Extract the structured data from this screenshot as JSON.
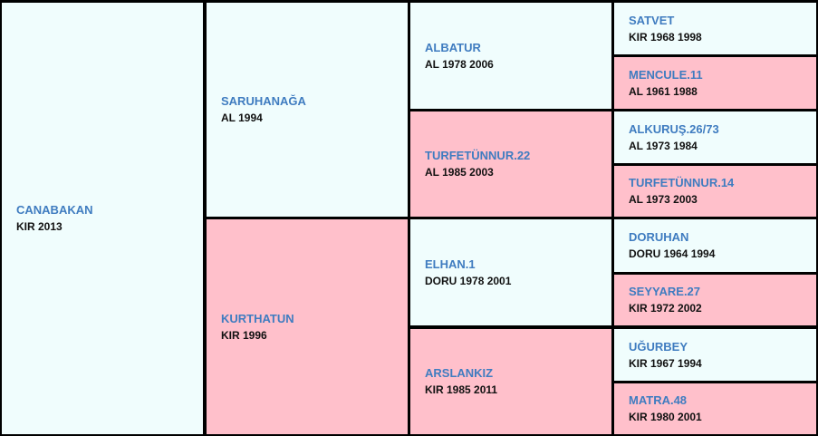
{
  "colors": {
    "male_bg": "#f0fdfd",
    "female_bg": "#ffc0cb",
    "name_text": "#3f7cc0",
    "grid_lines": "#000000"
  },
  "horse": {
    "name": "CANABAKAN",
    "info": "KIR 2013"
  },
  "sire": {
    "name": "SARUHANAĞA",
    "info": "AL 1994"
  },
  "dam": {
    "name": "KURTHATUN",
    "info": "KIR 1996"
  },
  "sire_sire": {
    "name": "ALBATUR",
    "info": "AL 1978 2006"
  },
  "sire_dam": {
    "name": "TURFETÜNNUR.22",
    "info": "AL 1985 2003"
  },
  "dam_sire": {
    "name": "ELHAN.1",
    "info": "DORU 1978 2001"
  },
  "dam_dam": {
    "name": "ARSLANKIZ",
    "info": "KIR 1985 2011"
  },
  "gen3": [
    {
      "name": "SATVET",
      "info": "KIR 1968 1998"
    },
    {
      "name": "MENCULE.11",
      "info": "AL 1961 1988"
    },
    {
      "name": "ALKURUŞ.26/73",
      "info": "AL 1973 1984"
    },
    {
      "name": "TURFETÜNNUR.14",
      "info": "AL 1973 2003"
    },
    {
      "name": "DORUHAN",
      "info": "DORU 1964 1994"
    },
    {
      "name": "SEYYARE.27",
      "info": "KIR 1972 2002"
    },
    {
      "name": "UĞURBEY",
      "info": "KIR 1967 1994"
    },
    {
      "name": "MATRA.48",
      "info": "KIR 1980 2001"
    }
  ]
}
